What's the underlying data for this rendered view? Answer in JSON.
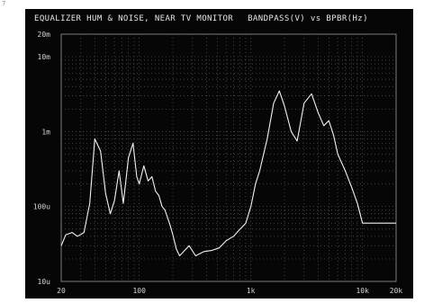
{
  "figure": {
    "corner_mark": "7"
  },
  "chart_data": {
    "type": "line",
    "title": "EQUALIZER HUM & NOISE, NEAR TV MONITOR",
    "subtitle": "BANDPASS(V) vs BPBR(Hz)",
    "xscale": "log",
    "yscale": "log",
    "xlim": [
      20,
      20000
    ],
    "ylim": [
      1e-05,
      0.02
    ],
    "grid": true,
    "x_ticks": [
      {
        "value": 20,
        "label": "20"
      },
      {
        "value": 100,
        "label": "100"
      },
      {
        "value": 1000,
        "label": "1k"
      },
      {
        "value": 10000,
        "label": "10k"
      },
      {
        "value": 20000,
        "label": "20k"
      }
    ],
    "y_ticks": [
      {
        "value": 0.02,
        "label": "20m"
      },
      {
        "value": 0.01,
        "label": "10m"
      },
      {
        "value": 0.001,
        "label": "1m"
      },
      {
        "value": 0.0001,
        "label": "100u"
      },
      {
        "value": 1e-05,
        "label": "10u"
      }
    ],
    "series": [
      {
        "color": "#f2f2f2",
        "x": [
          20,
          22,
          25,
          28,
          32,
          36,
          40,
          45,
          50,
          55,
          60,
          66,
          72,
          80,
          88,
          95,
          100,
          110,
          120,
          130,
          140,
          150,
          160,
          170,
          180,
          190,
          200,
          215,
          230,
          250,
          280,
          320,
          380,
          450,
          520,
          600,
          700,
          800,
          900,
          1000,
          1100,
          1200,
          1400,
          1600,
          1800,
          2000,
          2300,
          2600,
          3000,
          3500,
          4000,
          4500,
          5000,
          5500,
          6000,
          7000,
          8000,
          9000,
          10000,
          11000,
          12000,
          13000,
          14000,
          15000,
          16000,
          17000,
          18000,
          19000,
          20000
        ],
        "y": [
          3e-05,
          4.2e-05,
          4.5e-05,
          4e-05,
          4.5e-05,
          0.00011,
          0.0008,
          0.00055,
          0.00015,
          8e-05,
          0.00012,
          0.0003,
          0.00011,
          0.00045,
          0.0007,
          0.00025,
          0.0002,
          0.00035,
          0.00022,
          0.00025,
          0.00016,
          0.00014,
          0.0001,
          9e-05,
          7e-05,
          5.5e-05,
          4.2e-05,
          2.7e-05,
          2.2e-05,
          2.5e-05,
          3e-05,
          2.2e-05,
          2.5e-05,
          2.6e-05,
          2.8e-05,
          3.5e-05,
          4e-05,
          5e-05,
          6e-05,
          0.0001,
          0.0002,
          0.0003,
          0.0008,
          0.0024,
          0.0035,
          0.0022,
          0.001,
          0.00075,
          0.0024,
          0.0032,
          0.0018,
          0.0012,
          0.0014,
          0.0009,
          0.0005,
          0.0003,
          0.00018,
          0.00011,
          6e-05,
          6e-05,
          6e-05,
          6e-05,
          6e-05,
          6e-05,
          6e-05,
          6e-05,
          6e-05,
          6e-05,
          6e-05
        ]
      }
    ]
  }
}
